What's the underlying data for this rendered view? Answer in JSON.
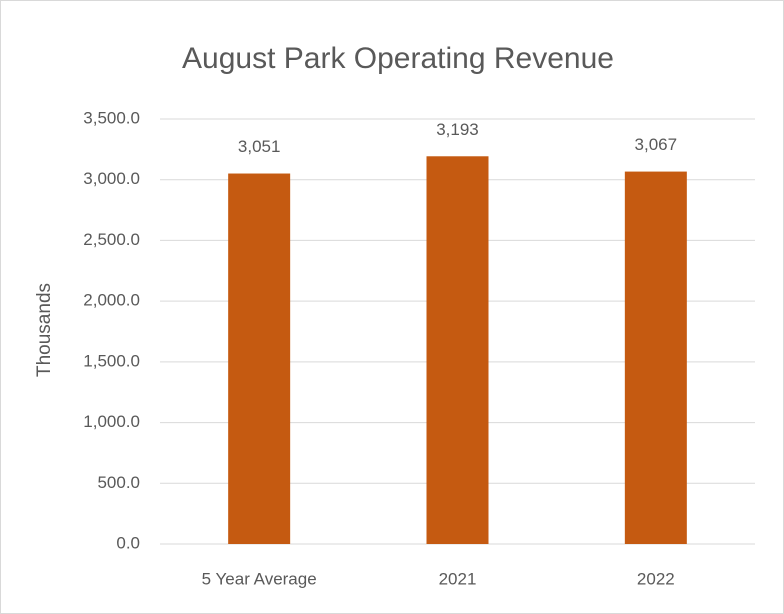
{
  "chart_data": {
    "type": "bar",
    "title": "August Park Operating Revenue",
    "y_label": "Thousands",
    "categories": [
      "5 Year Average",
      "2021",
      "2022"
    ],
    "values": [
      3051,
      3193,
      3067
    ],
    "value_labels": [
      "3,051",
      "3,193",
      "3,067"
    ],
    "color": "#c55a11",
    "ylim": [
      0,
      3500
    ],
    "yticks": [
      {
        "value": 0,
        "label": "0.0"
      },
      {
        "value": 500,
        "label": "500.0"
      },
      {
        "value": 1000,
        "label": "1,000.0"
      },
      {
        "value": 1500,
        "label": "1,500.0"
      },
      {
        "value": 2000,
        "label": "2,000.0"
      },
      {
        "value": 2500,
        "label": "2,500.0"
      },
      {
        "value": 3000,
        "label": "3,000.0"
      },
      {
        "value": 3500,
        "label": "3,500.0"
      }
    ],
    "grid": true
  }
}
